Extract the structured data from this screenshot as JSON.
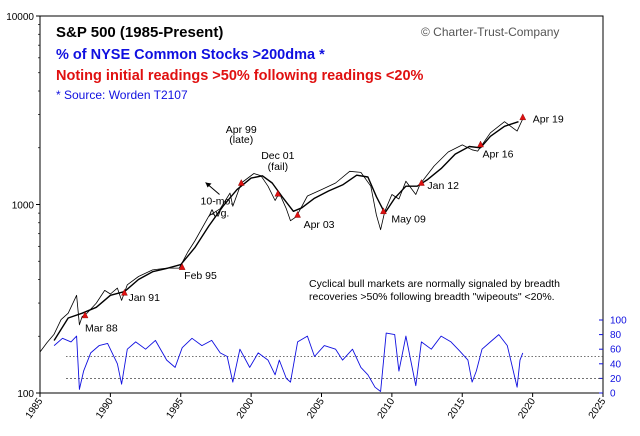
{
  "chart_data": {
    "type": "line",
    "title": "S&P 500 (1985-Present)",
    "subtitles": [
      {
        "text": "% of NYSE Common Stocks >200dma *",
        "color": "#1010e0"
      },
      {
        "text": "Noting initial readings >50% following readings <20%",
        "color": "#e01010"
      }
    ],
    "source": "* Source: Worden T2107",
    "copyright": "© Charter-Trust-Company",
    "note_lines": [
      "Cyclical bull markets are normally signaled by breadth",
      "recoveries >50% following breadth \"wipeouts\" <20%."
    ],
    "x_ticks": [
      "1985",
      "1990",
      "1995",
      "2000",
      "2005",
      "2010",
      "2015",
      "2020",
      "2025"
    ],
    "xlim": [
      1985,
      2025
    ],
    "y_left": {
      "scale": "log",
      "ylim": [
        100,
        10000
      ],
      "ticks": [
        "100",
        "1000",
        "10000"
      ]
    },
    "y_right": {
      "ylim": [
        0,
        100
      ],
      "ticks": [
        "0",
        "20",
        "40",
        "60",
        "80",
        "100"
      ],
      "color": "#1010e0"
    },
    "reference_lines": [
      50,
      20
    ],
    "series": [
      {
        "color": "#000000",
        "x": [
          1985.0,
          1985.5,
          1986.0,
          1986.5,
          1987.0,
          1987.6,
          1987.8,
          1988.0,
          1988.2,
          1989.0,
          1989.6,
          1990.0,
          1990.5,
          1990.8,
          1991.2,
          1992.0,
          1993.0,
          1994.0,
          1994.9,
          1995.5,
          1996.0,
          1997.0,
          1997.8,
          1998.5,
          1998.7,
          1999.3,
          2000.2,
          2000.7,
          2001.2,
          2001.7,
          2002.0,
          2002.5,
          2002.8,
          2003.2,
          2004.0,
          2005.0,
          2006.0,
          2007.0,
          2007.8,
          2008.5,
          2008.9,
          2009.2,
          2009.5,
          2010.0,
          2010.5,
          2011.0,
          2011.7,
          2012.0,
          2013.0,
          2014.0,
          2015.0,
          2015.7,
          2016.1,
          2017.0,
          2018.0,
          2018.9,
          2019.3
        ],
        "values": [
          165,
          185,
          205,
          245,
          265,
          330,
          230,
          255,
          258,
          300,
          350,
          335,
          360,
          310,
          375,
          415,
          450,
          460,
          460,
          560,
          640,
          870,
          950,
          1150,
          980,
          1300,
          1460,
          1420,
          1250,
          1050,
          1150,
          950,
          820,
          860,
          1110,
          1200,
          1300,
          1500,
          1480,
          1250,
          880,
          735,
          920,
          1130,
          1070,
          1330,
          1130,
          1280,
          1600,
          1900,
          2070,
          1950,
          1920,
          2400,
          2750,
          2450,
          2850
        ]
      },
      {
        "name": "10-mo. Avg.",
        "color": "#000000",
        "x": [
          1986.0,
          1987.0,
          1988.0,
          1989.0,
          1990.0,
          1991.0,
          1992.0,
          1993.0,
          1994.0,
          1995.0,
          1996.0,
          1997.0,
          1998.0,
          1999.0,
          2000.0,
          2000.8,
          2001.5,
          2002.2,
          2003.0,
          2003.6,
          2004.5,
          2005.5,
          2006.5,
          2007.5,
          2008.3,
          2008.9,
          2009.5,
          2010.2,
          2011.0,
          2011.8,
          2012.5,
          2013.5,
          2014.5,
          2015.5,
          2016.3,
          2017.0,
          2018.0,
          2019.0
        ],
        "values": [
          190,
          250,
          265,
          285,
          330,
          345,
          400,
          440,
          458,
          480,
          590,
          770,
          980,
          1200,
          1380,
          1420,
          1300,
          1100,
          920,
          960,
          1080,
          1180,
          1270,
          1430,
          1400,
          1100,
          900,
          1080,
          1250,
          1250,
          1350,
          1550,
          1850,
          2030,
          2000,
          2300,
          2600,
          2750
        ]
      },
      {
        "name": "T2107",
        "axis": "right",
        "color": "#1010e0",
        "x": [
          1986.0,
          1986.6,
          1987.2,
          1987.6,
          1987.8,
          1988.1,
          1988.6,
          1989.2,
          1989.8,
          1990.5,
          1990.8,
          1991.2,
          1991.8,
          1992.5,
          1993.2,
          1994.0,
          1994.6,
          1995.1,
          1995.8,
          1996.5,
          1997.2,
          1997.8,
          1998.3,
          1998.7,
          1999.2,
          1999.9,
          2000.5,
          2001.2,
          2001.7,
          2002.0,
          2002.5,
          2002.8,
          2003.3,
          2004.0,
          2004.5,
          2005.2,
          2006.0,
          2006.5,
          2007.2,
          2007.8,
          2008.3,
          2008.8,
          2009.2,
          2009.6,
          2010.2,
          2010.5,
          2011.0,
          2011.7,
          2012.1,
          2012.8,
          2013.5,
          2014.2,
          2014.8,
          2015.4,
          2015.7,
          2016.0,
          2016.4,
          2017.0,
          2017.6,
          2018.2,
          2018.9,
          2019.1,
          2019.3
        ],
        "values": [
          65,
          75,
          70,
          78,
          5,
          30,
          55,
          65,
          68,
          40,
          12,
          60,
          70,
          60,
          72,
          45,
          35,
          62,
          75,
          65,
          72,
          55,
          50,
          15,
          60,
          35,
          55,
          45,
          25,
          45,
          20,
          15,
          70,
          78,
          50,
          65,
          60,
          45,
          60,
          35,
          25,
          8,
          2,
          82,
          80,
          30,
          78,
          10,
          70,
          60,
          78,
          70,
          58,
          45,
          15,
          30,
          60,
          70,
          80,
          65,
          8,
          45,
          55
        ]
      }
    ],
    "annotations": [
      {
        "text": "Mar 88",
        "x": 1988.2,
        "y": 258
      },
      {
        "text": "Jan 91",
        "x": 1991.0,
        "y": 340
      },
      {
        "text": "Feb 95",
        "x": 1995.1,
        "y": 465
      },
      {
        "text": "Apr 99",
        "x": 1999.3,
        "y": 1300
      },
      {
        "text": "(late)",
        "x": 1999.3,
        "y": 1300
      },
      {
        "text": "Dec 01",
        "x": 2001.9,
        "y": 1140
      },
      {
        "text": "(fail)",
        "x": 2001.9,
        "y": 1140
      },
      {
        "text": "Apr 03",
        "x": 2003.3,
        "y": 880
      },
      {
        "text": "May 09",
        "x": 2009.4,
        "y": 920
      },
      {
        "text": "Jan 12",
        "x": 2012.1,
        "y": 1300
      },
      {
        "text": "Apr 16",
        "x": 2016.3,
        "y": 2080
      },
      {
        "text": "Apr 19",
        "x": 2019.3,
        "y": 2900
      },
      {
        "text": "10-mo.",
        "x": 1997.4,
        "y": 1000
      },
      {
        "text": "Avg.",
        "x": 1997.4,
        "y": 1000
      }
    ],
    "signals": [
      {
        "x": 1988.2,
        "y": 258
      },
      {
        "x": 1991.0,
        "y": 340
      },
      {
        "x": 1995.1,
        "y": 465
      },
      {
        "x": 1999.3,
        "y": 1300
      },
      {
        "x": 2001.9,
        "y": 1140
      },
      {
        "x": 2003.3,
        "y": 880
      },
      {
        "x": 2009.4,
        "y": 920
      },
      {
        "x": 2012.1,
        "y": 1300
      },
      {
        "x": 2016.3,
        "y": 2080
      },
      {
        "x": 2019.3,
        "y": 2900
      }
    ]
  }
}
